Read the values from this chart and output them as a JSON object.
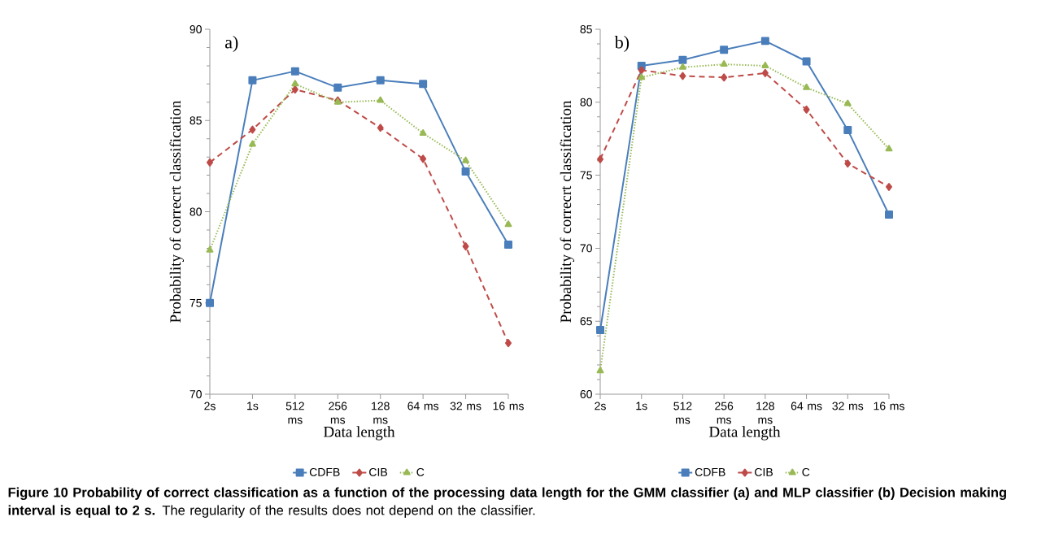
{
  "chart_data": [
    {
      "type": "line",
      "annotations": [
        "a)",
        "**Figure 10 Probability of correct classification as a function of the processing data length for the GMM classifier (a) and MLP classifier (b) Decision making interval is equal to 2 s.** The regularity of the results does not depend on the classifier."
      ],
      "xlabel": "Data length",
      "ylabel": "Probability of correcrt classification",
      "categories": [
        "2s",
        "1s",
        "512 ms",
        "256 ms",
        "128 ms",
        "64 ms",
        "32 ms",
        "16 ms"
      ],
      "ylim": [
        70,
        90
      ],
      "yticks": [
        70,
        75,
        80,
        85,
        90
      ],
      "legend": "bottom",
      "grid": false,
      "series": [
        {
          "name": "CDFB",
          "color": "#4a7ebb",
          "marker": "square",
          "line_style": "solid",
          "values": [
            75.0,
            87.2,
            87.7,
            86.8,
            87.2,
            87.0,
            82.2,
            78.2
          ]
        },
        {
          "name": "CIB",
          "color": "#be4b48",
          "marker": "diamond",
          "line_style": "dashed",
          "values": [
            82.7,
            84.5,
            86.7,
            86.1,
            84.6,
            82.9,
            78.1,
            72.8
          ]
        },
        {
          "name": "C",
          "color": "#98b954",
          "marker": "triangle",
          "line_style": "dotted",
          "values": [
            77.9,
            83.7,
            87.0,
            86.0,
            86.1,
            84.3,
            82.8,
            79.3
          ]
        }
      ]
    },
    {
      "type": "line",
      "annotations": [
        "b)"
      ],
      "xlabel": "Data length",
      "ylabel": "Probability of correcrt classification",
      "categories": [
        "2s",
        "1s",
        "512 ms",
        "256 ms",
        "128 ms",
        "64 ms",
        "32 ms",
        "16 ms"
      ],
      "ylim": [
        60,
        85
      ],
      "yticks": [
        60,
        65,
        70,
        75,
        80,
        85
      ],
      "legend": "bottom",
      "grid": false,
      "series": [
        {
          "name": "CDFB",
          "color": "#4a7ebb",
          "marker": "square",
          "line_style": "solid",
          "values": [
            64.4,
            82.5,
            82.9,
            83.6,
            84.2,
            82.8,
            78.1,
            72.3
          ]
        },
        {
          "name": "CIB",
          "color": "#be4b48",
          "marker": "diamond",
          "line_style": "dashed",
          "values": [
            76.1,
            82.2,
            81.8,
            81.7,
            82.0,
            79.5,
            75.8,
            74.2
          ]
        },
        {
          "name": "C",
          "color": "#98b954",
          "marker": "triangle",
          "line_style": "dotted",
          "values": [
            61.6,
            81.7,
            82.4,
            82.6,
            82.5,
            81.0,
            79.9,
            76.8
          ]
        }
      ]
    }
  ]
}
